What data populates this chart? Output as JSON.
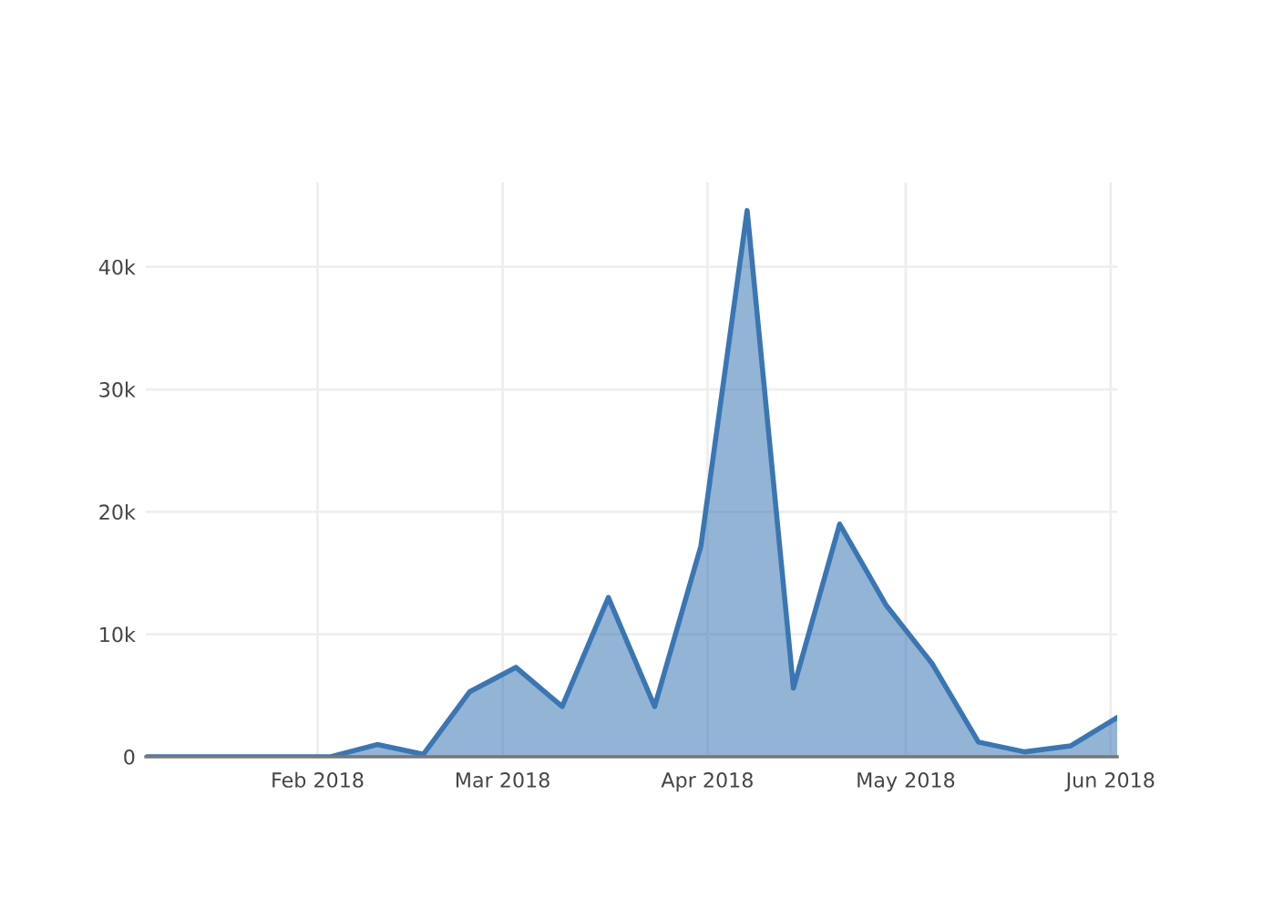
{
  "chart_data": {
    "type": "area",
    "x": [
      "2018-01-06",
      "2018-01-13",
      "2018-01-20",
      "2018-01-27",
      "2018-02-03",
      "2018-02-10",
      "2018-02-17",
      "2018-02-24",
      "2018-03-03",
      "2018-03-10",
      "2018-03-17",
      "2018-03-24",
      "2018-03-31",
      "2018-04-07",
      "2018-04-14",
      "2018-04-21",
      "2018-04-28",
      "2018-05-05",
      "2018-05-12",
      "2018-05-19",
      "2018-05-26",
      "2018-06-02"
    ],
    "series": [
      {
        "color": "#3a76b3",
        "values": [
          0,
          0,
          0,
          0,
          0,
          1000,
          200,
          5300,
          7300,
          4100,
          13000,
          4100,
          17200,
          44600,
          5600,
          19000,
          12400,
          7600,
          1200,
          400,
          900,
          3200
        ]
      }
    ],
    "xlim": [
      "2018-01-06",
      "2018-06-02"
    ],
    "ylim": [
      0,
      46900
    ],
    "xticks": [
      {
        "value": "2018-02-01",
        "label": "Feb 2018"
      },
      {
        "value": "2018-03-01",
        "label": "Mar 2018"
      },
      {
        "value": "2018-04-01",
        "label": "Apr 2018"
      },
      {
        "value": "2018-05-01",
        "label": "May 2018"
      },
      {
        "value": "2018-06-01",
        "label": "Jun 2018"
      }
    ],
    "yticks": [
      0,
      {
        "value": 10000,
        "label": "10k"
      },
      {
        "value": 20000,
        "label": "20k"
      },
      {
        "value": 30000,
        "label": "30k"
      },
      {
        "value": 40000,
        "label": "40k"
      }
    ],
    "grid": true
  }
}
